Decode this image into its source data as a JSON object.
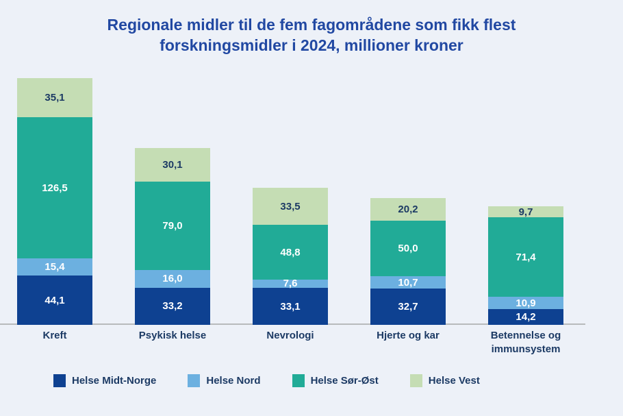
{
  "chart_data": {
    "type": "bar",
    "stacked": true,
    "title": "Regionale midler til de fem fagområdene som fikk flest forskningsmidler i 2024, millioner kroner",
    "unit": "millioner kroner",
    "categories": [
      "Kreft",
      "Psykisk helse",
      "Nevrologi",
      "Hjerte og kar",
      "Betennelse og immunsystem"
    ],
    "series": [
      {
        "name": "Helse Midt-Norge",
        "color": "#0e4191",
        "label_color": "#ffffff",
        "values": [
          44.1,
          33.2,
          33.1,
          32.7,
          14.2
        ],
        "labels": [
          "44,1",
          "33,2",
          "33,1",
          "32,7",
          "14,2"
        ]
      },
      {
        "name": "Helse Nord",
        "color": "#6cb0e0",
        "label_color": "#ffffff",
        "values": [
          15.4,
          16.0,
          7.6,
          10.7,
          10.9
        ],
        "labels": [
          "15,4",
          "16,0",
          "7,6",
          "10,7",
          "10,9"
        ]
      },
      {
        "name": "Helse Sør-Øst",
        "color": "#21ab97",
        "label_color": "#ffffff",
        "values": [
          126.5,
          79.0,
          48.8,
          50.0,
          71.4
        ],
        "labels": [
          "126,5",
          "79,0",
          "48,8",
          "50,0",
          "71,4"
        ]
      },
      {
        "name": "Helse Vest",
        "color": "#c5ddb4",
        "label_color": "#1c3a64",
        "values": [
          35.1,
          30.1,
          33.5,
          20.2,
          9.7
        ],
        "labels": [
          "35,1",
          "30,1",
          "33,5",
          "20,2",
          "9,7"
        ]
      }
    ],
    "totals": [
      221.1,
      158.3,
      123.0,
      113.6,
      106.2
    ],
    "legend_position": "bottom",
    "grid": false,
    "colors": {
      "background": "#edf1f8",
      "title_text": "#2148a2",
      "category_text": "#1c3a64",
      "axis_line": "#b7babc"
    }
  }
}
